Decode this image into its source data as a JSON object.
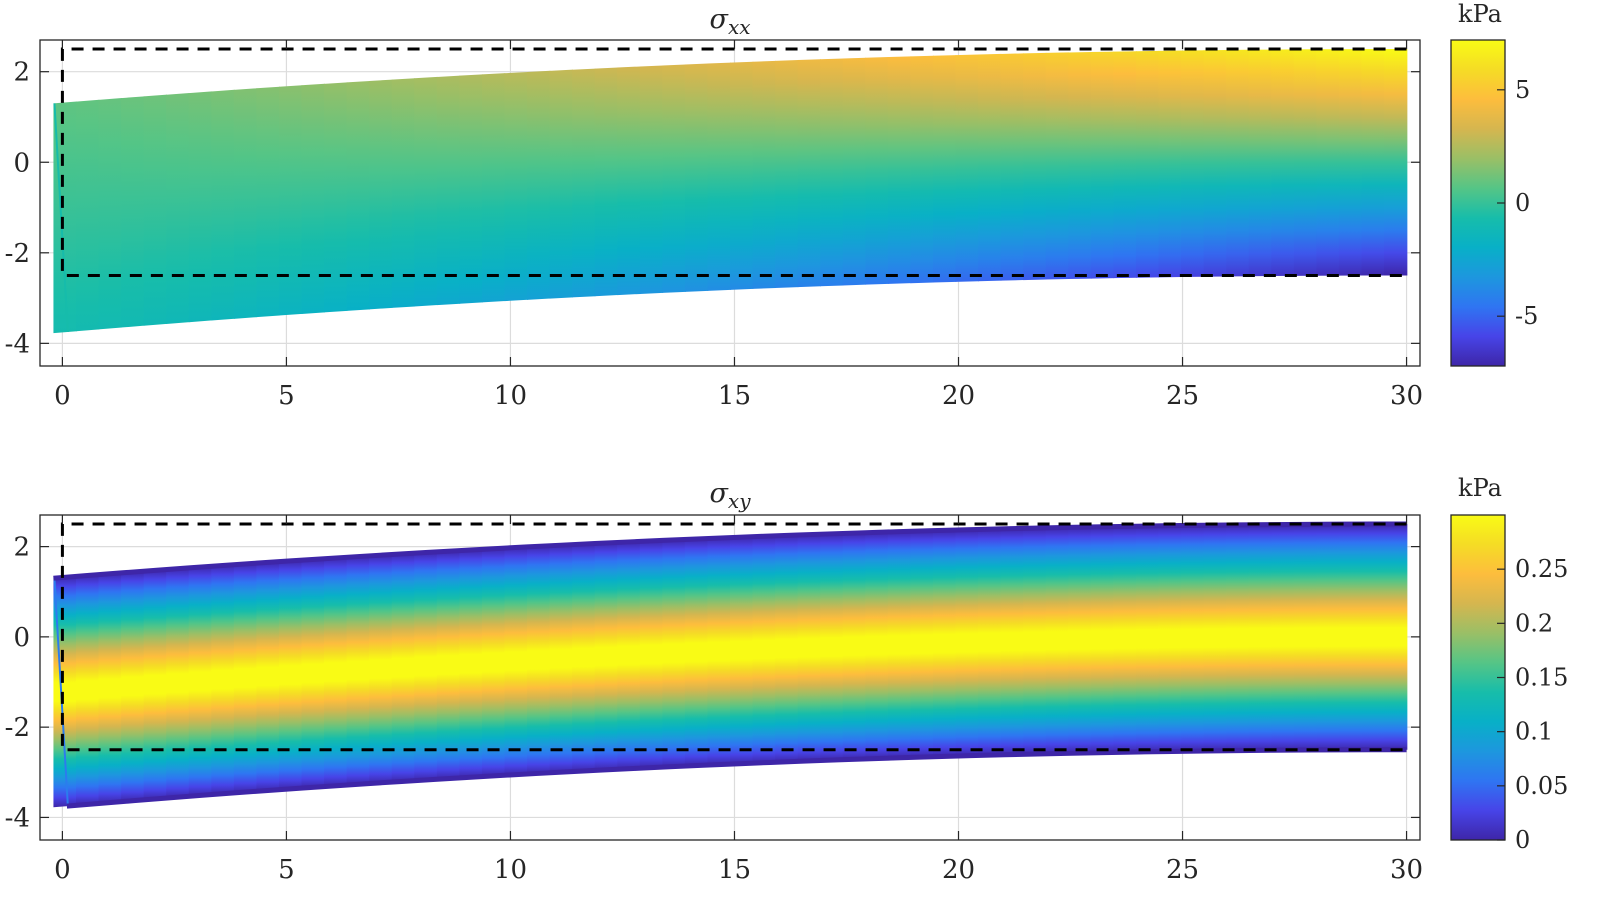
{
  "colors": {
    "axis": "#262626",
    "grid": "#dcdcdc",
    "dashed_outline": "#000000",
    "colormap": [
      "#3e26a8",
      "#4744e8",
      "#2f75f2",
      "#1d97de",
      "#08b0c7",
      "#17bdaa",
      "#55c586",
      "#9abf66",
      "#d5b64f",
      "#fdbd3d",
      "#f5dc25",
      "#f9fb15"
    ]
  },
  "chart_data": [
    {
      "type": "heatmap",
      "title": "σxx",
      "title_parts": {
        "base": "σ",
        "sub": "xx"
      },
      "xlim": [
        -0.5,
        30.3
      ],
      "ylim": [
        -4.5,
        2.7
      ],
      "xticks": [
        0,
        5,
        10,
        15,
        20,
        25,
        30
      ],
      "xtick_labels": [
        "0",
        "5",
        "10",
        "15",
        "20",
        "25",
        "30"
      ],
      "yticks": [
        2,
        0,
        -2,
        -4
      ],
      "ytick_labels": [
        "2",
        "0",
        "-2",
        "-4"
      ],
      "grid": true,
      "undeformed_outline": {
        "x": [
          0,
          30
        ],
        "y": [
          -2.5,
          2.5
        ],
        "style": "dashed"
      },
      "deformed_beam": {
        "left_edge": {
          "x_top": -0.2,
          "y_top": 1.3,
          "x_bottom": 0.1,
          "y_bottom": -3.75
        },
        "right_edge": {
          "x": 30,
          "y_top": 2.5,
          "y_bottom": -2.5
        },
        "field": "bending stress: positive (tension) near top, negative (compression) near bottom, magnitude increasing from free end (x=0) to fixed end (x=30)"
      },
      "colorbar": {
        "unit": "kPa",
        "range": [
          -7.2,
          7.2
        ],
        "ticks": [
          5,
          0,
          -5
        ],
        "tick_labels": [
          "5",
          "0",
          "-5"
        ]
      }
    },
    {
      "type": "heatmap",
      "title": "σxy",
      "title_parts": {
        "base": "σ",
        "sub": "xy"
      },
      "xlim": [
        -0.5,
        30.3
      ],
      "ylim": [
        -4.5,
        2.7
      ],
      "xticks": [
        0,
        5,
        10,
        15,
        20,
        25,
        30
      ],
      "xtick_labels": [
        "0",
        "5",
        "10",
        "15",
        "20",
        "25",
        "30"
      ],
      "yticks": [
        2,
        0,
        -2,
        -4
      ],
      "ytick_labels": [
        "2",
        "0",
        "-2",
        "-4"
      ],
      "grid": true,
      "undeformed_outline": {
        "x": [
          0,
          30
        ],
        "y": [
          -2.5,
          2.5
        ],
        "style": "dashed"
      },
      "deformed_beam": {
        "left_edge": {
          "x_top": -0.2,
          "y_top": 1.3,
          "x_bottom": 0.1,
          "y_bottom": -3.75
        },
        "right_edge": {
          "x": 30,
          "y_top": 2.5,
          "y_bottom": -2.5
        },
        "field": "shear stress: maximum along the neutral axis, zero at top and bottom surfaces"
      },
      "colorbar": {
        "unit": "kPa",
        "range": [
          0,
          0.3
        ],
        "ticks": [
          0.25,
          0.2,
          0.15,
          0.1,
          0.05,
          0
        ],
        "tick_labels": [
          "0.25",
          "0.2",
          "0.15",
          "0.1",
          "0.05",
          "0"
        ]
      }
    }
  ]
}
